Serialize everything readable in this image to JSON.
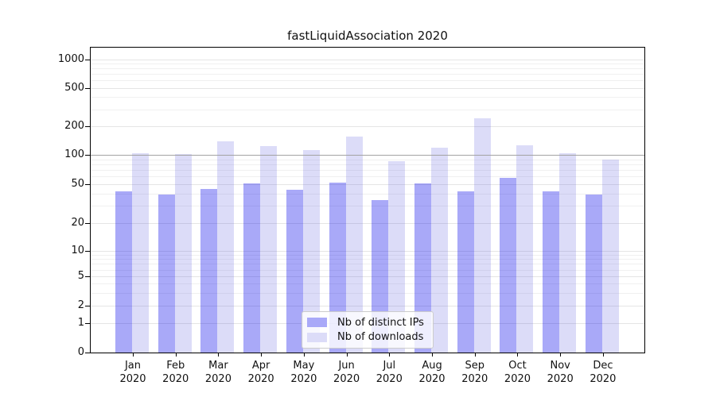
{
  "title": "fastLiquidAssociation 2020",
  "colors": {
    "bar_ips_solid": "#a9a9f8",
    "bar_downloads_solid": "#dcdcf8",
    "bar_ips_fill": "rgba(10,10,235,0.35)",
    "bar_downloads_fill": "rgba(80,80,220,0.2)",
    "grid_major": "#e5e5e5",
    "grid_minor": "#f0f0f0",
    "hline_100": "#a3a3a3",
    "spine": "#000000"
  },
  "legend": {
    "items": [
      {
        "label": "Nb of distinct IPs",
        "color": "#a9a9f8"
      },
      {
        "label": "Nb of downloads",
        "color": "#dcdcf8"
      }
    ],
    "position": "lower center"
  },
  "y_axis": {
    "tick_labels": [
      "0",
      "1",
      "2",
      "5",
      "10",
      "20",
      "50",
      "100",
      "200",
      "500",
      "1000"
    ]
  },
  "x_axis": {
    "tick_labels": [
      "Jan 2020",
      "Feb 2020",
      "Mar 2020",
      "Apr 2020",
      "May 2020",
      "Jun 2020",
      "Jul 2020",
      "Aug 2020",
      "Sep 2020",
      "Oct 2020",
      "Nov 2020",
      "Dec 2020"
    ]
  },
  "chart_data": {
    "type": "bar",
    "title": "fastLiquidAssociation 2020",
    "categories": [
      "Jan 2020",
      "Feb 2020",
      "Mar 2020",
      "Apr 2020",
      "May 2020",
      "Jun 2020",
      "Jul 2020",
      "Aug 2020",
      "Sep 2020",
      "Oct 2020",
      "Nov 2020",
      "Dec 2020"
    ],
    "series": [
      {
        "name": "Nb of distinct IPs",
        "color": "#a9a9f8",
        "fill": "rgba(10,10,235,0.35)",
        "values": [
          42,
          39,
          45,
          51,
          44,
          52,
          34,
          51,
          42,
          58,
          42,
          39
        ]
      },
      {
        "name": "Nb of downloads",
        "color": "#dcdcf8",
        "fill": "rgba(80,80,220,0.2)",
        "values": [
          104,
          102,
          138,
          124,
          113,
          155,
          86,
          119,
          242,
          126,
          104,
          89
        ]
      }
    ],
    "yscale": "symlog",
    "y_ticks": [
      0,
      1,
      2,
      5,
      10,
      20,
      50,
      100,
      200,
      500,
      1000
    ],
    "ylim": [
      0,
      1300
    ],
    "hline_y": 100,
    "grid": "both",
    "legend_position": "lower center",
    "xlabel": "",
    "ylabel": ""
  }
}
